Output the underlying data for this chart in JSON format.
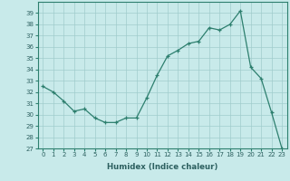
{
  "x": [
    0,
    1,
    2,
    3,
    4,
    5,
    6,
    7,
    8,
    9,
    10,
    11,
    12,
    13,
    14,
    15,
    16,
    17,
    18,
    19,
    20,
    21,
    22,
    23
  ],
  "y": [
    32.5,
    32.0,
    31.2,
    30.3,
    30.5,
    29.7,
    29.3,
    29.3,
    29.7,
    29.7,
    31.5,
    33.5,
    35.2,
    35.7,
    36.3,
    36.5,
    37.7,
    37.5,
    38.0,
    39.2,
    34.2,
    33.2,
    30.2,
    27.0
  ],
  "xlim": [
    -0.5,
    23.5
  ],
  "ylim": [
    27,
    40
  ],
  "yticks": [
    27,
    28,
    29,
    30,
    31,
    32,
    33,
    34,
    35,
    36,
    37,
    38,
    39
  ],
  "xticks": [
    0,
    1,
    2,
    3,
    4,
    5,
    6,
    7,
    8,
    9,
    10,
    11,
    12,
    13,
    14,
    15,
    16,
    17,
    18,
    19,
    20,
    21,
    22,
    23
  ],
  "xlabel": "Humidex (Indice chaleur)",
  "line_color": "#2d7f6e",
  "bg_color": "#c8eaea",
  "grid_color": "#a0cccc",
  "marker": "+",
  "tick_label_color": "#2d6060",
  "xlabel_color": "#2d6060"
}
